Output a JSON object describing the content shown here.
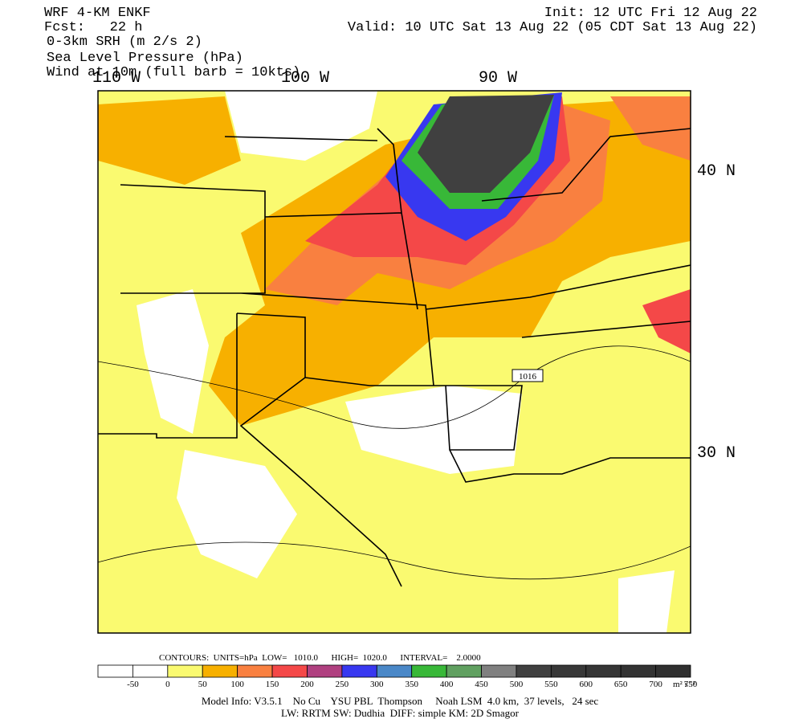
{
  "header": {
    "title": "WRF 4-KM ENKF",
    "forecast": "Fcst:   22 h",
    "fields": [
      "0-3km SRH (m 2/s 2)",
      "Sea Level Pressure (hPa)",
      "Wind at 10m (full barb = 10kts)"
    ],
    "init": "Init: 12 UTC Fri 12 Aug 22",
    "valid": "Valid: 10 UTC Sat 13 Aug 22 (05 CDT Sat 13 Aug 22)"
  },
  "map": {
    "longitudes": [
      "110 W",
      "100 W",
      "90 W"
    ],
    "latitudes": [
      "40 N",
      "30 N"
    ],
    "isobar_label": "1016"
  },
  "contours": "CONTOURS:  UNITS=hPa  LOW=   1010.0      HIGH=  1020.0      INTERVAL=    2.0000",
  "colorbar": {
    "colors": [
      "#ffffff",
      "#ffffff",
      "#fafa70",
      "#f7b000",
      "#f98040",
      "#f44848",
      "#b04080",
      "#3838f0",
      "#4a88c8",
      "#38b838",
      "#60a060",
      "#808080",
      "#404040",
      "#383838",
      "#363636",
      "#333333",
      "#303030"
    ],
    "labels": [
      "-50",
      "0",
      "50",
      "100",
      "150",
      "200",
      "250",
      "300",
      "350",
      "400",
      "450",
      "500",
      "550",
      "600",
      "650",
      "700",
      "750"
    ],
    "units": "m² s⁻²"
  },
  "footer": [
    "Model Info: V3.5.1    No Cu    YSU PBL  Thompson     Noah LSM  4.0 km,  37 levels,   24 sec",
    "LW: RRTM SW: Dudhia  DIFF: simple KM: 2D Smagor"
  ]
}
